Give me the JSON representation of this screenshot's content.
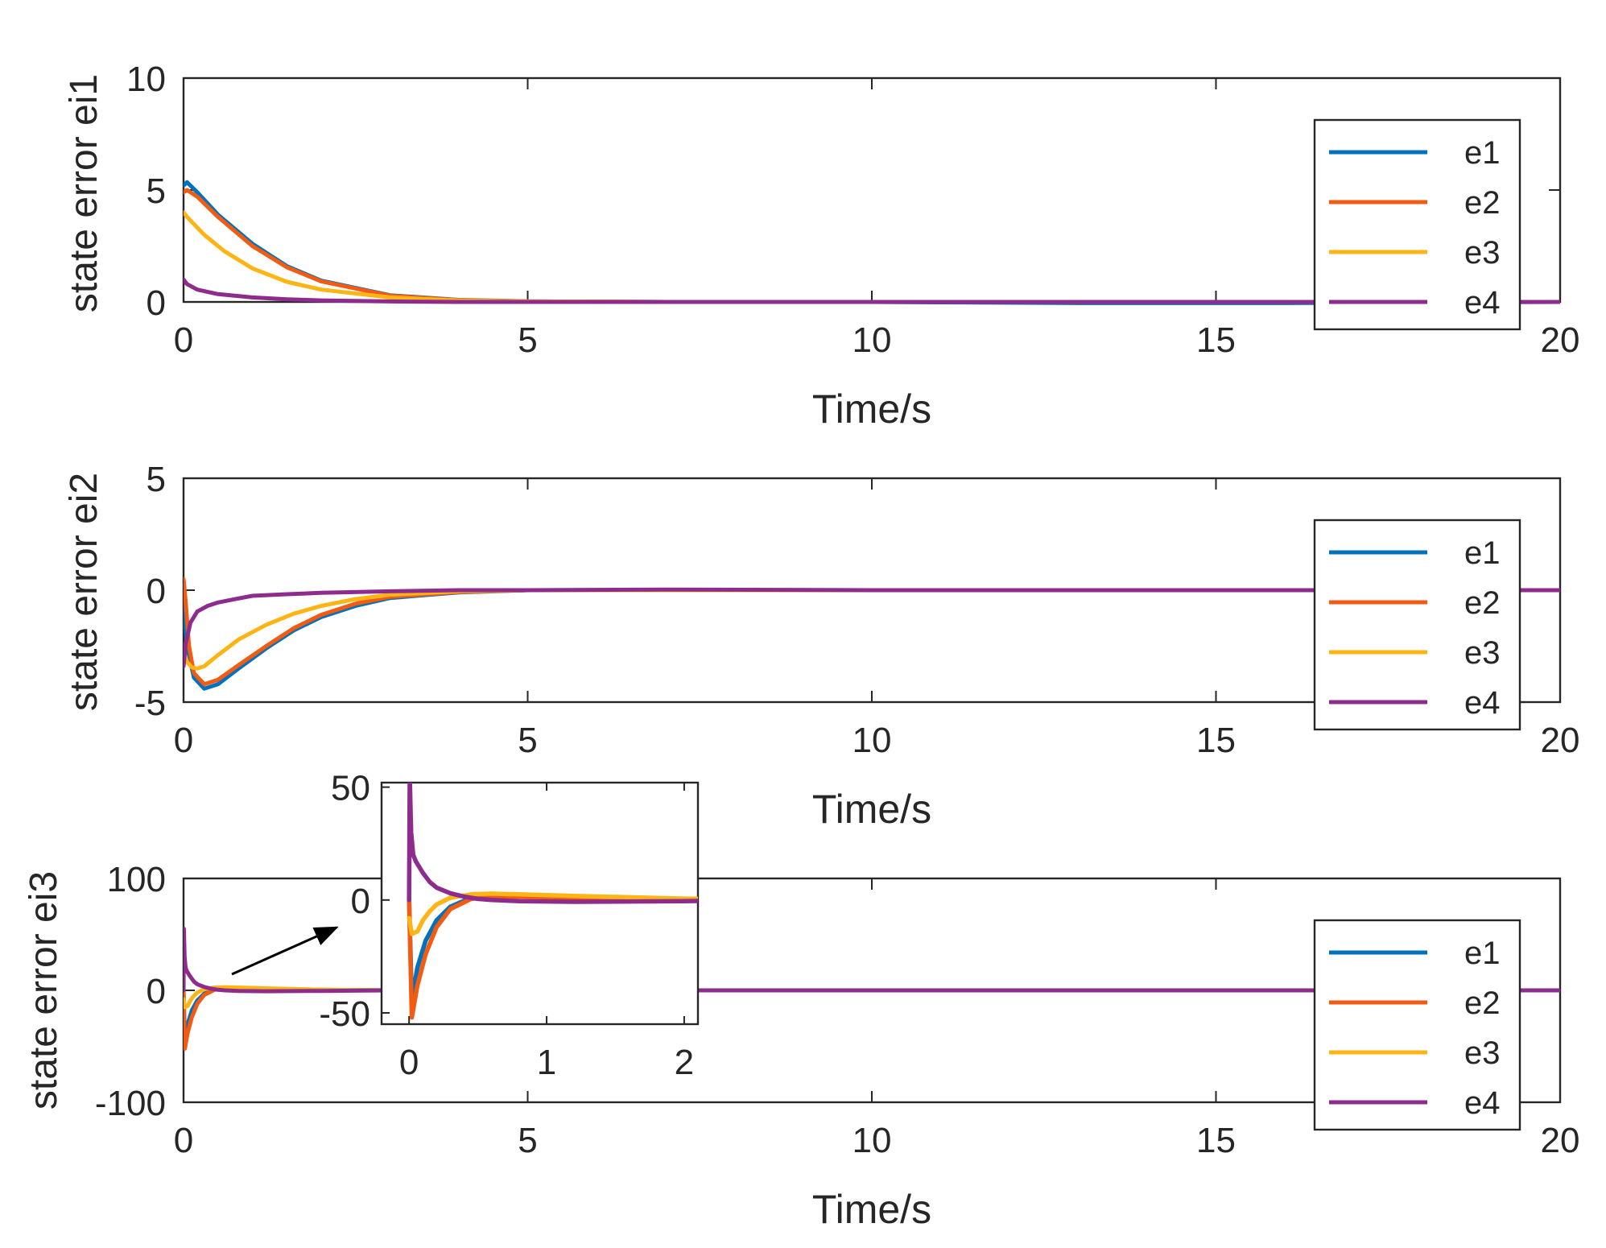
{
  "colors": {
    "e1": "#0072BD",
    "e2": "#F25B11",
    "e3": "#FDB515",
    "e4": "#8E2C8E",
    "axis": "#262626",
    "background": "#ffffff"
  },
  "chart_data": [
    {
      "type": "line",
      "title": "",
      "xlabel": "Time/s",
      "ylabel": "state error ei1",
      "xlim": [
        0,
        20
      ],
      "ylim": [
        0,
        10
      ],
      "xticks": [
        "0",
        "5",
        "10",
        "15",
        "20"
      ],
      "yticks": [
        "0",
        "5",
        "10"
      ],
      "legend": {
        "placement": "right",
        "entries": [
          "e1",
          "e2",
          "e3",
          "e4"
        ]
      },
      "series": [
        {
          "name": "e1",
          "x": [
            0,
            0.05,
            0.2,
            0.5,
            1,
            1.5,
            2,
            3,
            4,
            5,
            7,
            10,
            13,
            16,
            20
          ],
          "y": [
            5.2,
            5.35,
            4.9,
            3.9,
            2.6,
            1.6,
            0.95,
            0.3,
            0.09,
            0.03,
            0,
            0,
            -0.05,
            -0.05,
            0
          ]
        },
        {
          "name": "e2",
          "x": [
            0,
            0.05,
            0.2,
            0.5,
            1,
            1.5,
            2,
            3,
            4,
            5,
            7,
            10,
            13,
            16,
            20
          ],
          "y": [
            4.9,
            5.0,
            4.7,
            3.8,
            2.5,
            1.55,
            0.92,
            0.28,
            0.08,
            0.02,
            0,
            0,
            0,
            0,
            0
          ]
        },
        {
          "name": "e3",
          "x": [
            0,
            0.05,
            0.3,
            0.6,
            1,
            1.5,
            2,
            3,
            4,
            5,
            7,
            10,
            15,
            20
          ],
          "y": [
            4.0,
            3.8,
            3.0,
            2.25,
            1.5,
            0.9,
            0.55,
            0.2,
            0.06,
            0.02,
            0,
            0,
            0,
            0
          ]
        },
        {
          "name": "e4",
          "x": [
            0,
            0.05,
            0.2,
            0.5,
            1,
            1.5,
            2,
            3,
            4,
            5,
            7,
            10,
            15,
            20
          ],
          "y": [
            1.0,
            0.8,
            0.55,
            0.35,
            0.2,
            0.12,
            0.07,
            0.02,
            0,
            0,
            0,
            0,
            0,
            0
          ]
        }
      ]
    },
    {
      "type": "line",
      "title": "",
      "xlabel": "Time/s",
      "ylabel": "state error ei2",
      "xlim": [
        0,
        20
      ],
      "ylim": [
        -5,
        5
      ],
      "xticks": [
        "0",
        "5",
        "10",
        "15",
        "20"
      ],
      "yticks": [
        "-5",
        "0",
        "5"
      ],
      "legend": {
        "placement": "right",
        "entries": [
          "e1",
          "e2",
          "e3",
          "e4"
        ]
      },
      "series": [
        {
          "name": "e1",
          "x": [
            0,
            0.05,
            0.15,
            0.3,
            0.5,
            0.8,
            1.2,
            1.6,
            2,
            2.5,
            3,
            4,
            5,
            7,
            10,
            15,
            20
          ],
          "y": [
            -0.5,
            -2.5,
            -3.9,
            -4.4,
            -4.2,
            -3.5,
            -2.6,
            -1.8,
            -1.2,
            -0.7,
            -0.35,
            -0.1,
            0,
            0,
            0,
            0,
            0
          ]
        },
        {
          "name": "e2",
          "x": [
            0,
            0.03,
            0.08,
            0.15,
            0.3,
            0.5,
            0.8,
            1.2,
            1.6,
            2,
            2.5,
            3,
            4,
            5,
            7,
            10,
            15,
            20
          ],
          "y": [
            0.5,
            -0.5,
            -2.5,
            -3.7,
            -4.2,
            -4.0,
            -3.35,
            -2.5,
            -1.7,
            -1.1,
            -0.6,
            -0.3,
            -0.08,
            0,
            0,
            0,
            0,
            0
          ]
        },
        {
          "name": "e3",
          "x": [
            0,
            0.05,
            0.12,
            0.2,
            0.3,
            0.5,
            0.8,
            1.2,
            1.6,
            2,
            2.5,
            3,
            4,
            5,
            7,
            10,
            15,
            20
          ],
          "y": [
            -2.7,
            -3.2,
            -3.45,
            -3.5,
            -3.4,
            -2.9,
            -2.2,
            -1.55,
            -1.05,
            -0.7,
            -0.4,
            -0.2,
            -0.05,
            0,
            0,
            0,
            0,
            0
          ]
        },
        {
          "name": "e4",
          "x": [
            0,
            0.03,
            0.1,
            0.2,
            0.35,
            0.5,
            0.75,
            1,
            1.5,
            2,
            3,
            4,
            5,
            7,
            10,
            15,
            20
          ],
          "y": [
            -3.4,
            -2.4,
            -1.45,
            -0.95,
            -0.7,
            -0.55,
            -0.4,
            -0.25,
            -0.18,
            -0.12,
            -0.05,
            0,
            0,
            0.03,
            0,
            0,
            0
          ]
        }
      ]
    },
    {
      "type": "line",
      "title": "",
      "xlabel": "Time/s",
      "ylabel": "state error ei3",
      "xlim": [
        0,
        20
      ],
      "ylim": [
        -100,
        100
      ],
      "xticks": [
        "0",
        "5",
        "10",
        "15",
        "20"
      ],
      "yticks": [
        "-100",
        "0",
        "100"
      ],
      "legend": {
        "placement": "right",
        "entries": [
          "e1",
          "e2",
          "e3",
          "e4"
        ]
      },
      "series": [
        {
          "name": "e1",
          "x": [
            0,
            0.02,
            0.06,
            0.12,
            0.2,
            0.3,
            0.45,
            0.6,
            0.8,
            1.2,
            2,
            3,
            5,
            10,
            15,
            20
          ],
          "y": [
            0,
            -45,
            -30,
            -18,
            -9,
            -3,
            1,
            2,
            2,
            1.5,
            0.5,
            0,
            0,
            0,
            0,
            0
          ]
        },
        {
          "name": "e2",
          "x": [
            0,
            0.02,
            0.06,
            0.12,
            0.2,
            0.3,
            0.45,
            0.6,
            0.8,
            1.2,
            2,
            3,
            5,
            10,
            15,
            20
          ],
          "y": [
            0,
            -52,
            -38,
            -24,
            -12,
            -4,
            0.5,
            1.5,
            1.5,
            1,
            0.3,
            0,
            0,
            0,
            0,
            0
          ]
        },
        {
          "name": "e3",
          "x": [
            0,
            0.02,
            0.06,
            0.1,
            0.15,
            0.2,
            0.3,
            0.45,
            0.6,
            0.8,
            1.2,
            2,
            3,
            5,
            10,
            15,
            20
          ],
          "y": [
            -8,
            -15,
            -14,
            -9,
            -5,
            -2,
            1,
            2.5,
            2.8,
            2.5,
            1.8,
            0.6,
            0,
            0,
            0,
            0,
            0
          ]
        },
        {
          "name": "e4",
          "x": [
            0,
            0.005,
            0.015,
            0.03,
            0.05,
            0.1,
            0.15,
            0.2,
            0.3,
            0.4,
            0.5,
            0.6,
            0.8,
            1.2,
            2,
            3,
            5,
            10,
            15,
            20
          ],
          "y": [
            0,
            55,
            30,
            20,
            17,
            12,
            8,
            5.5,
            3,
            1.5,
            0.5,
            0,
            -0.5,
            -0.8,
            -0.5,
            0,
            0,
            0,
            0,
            0
          ]
        }
      ],
      "inset": {
        "xlim": [
          -0.2,
          2.1
        ],
        "ylim": [
          -55,
          52
        ],
        "xticks": [
          "0",
          "1",
          "2"
        ],
        "yticks": [
          "-50",
          "0",
          "50"
        ],
        "annotation": "arrow pointing from main plot to inset"
      }
    }
  ]
}
